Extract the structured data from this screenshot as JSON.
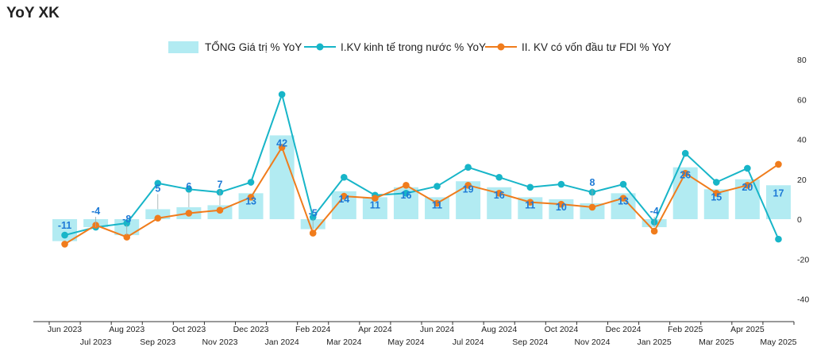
{
  "title": "YoY XK",
  "legend": {
    "total": "TỔNG Giá trị % YoY",
    "domestic": "I.KV kinh tế trong nước % YoY",
    "fdi": "II. KV có vốn đầu tư FDI % YoY"
  },
  "colors": {
    "bar": "#b2ebf2",
    "domestic": "#17b5c8",
    "fdi": "#f07c1c",
    "label": "#1e7ad6",
    "axis": "#333333"
  },
  "chart_data": {
    "type": "bar",
    "categories": [
      "Jun 2023",
      "Jul 2023",
      "Aug 2023",
      "Sep 2023",
      "Oct 2023",
      "Nov 2023",
      "Dec 2023",
      "Jan 2024",
      "Feb 2024",
      "Mar 2024",
      "Apr 2024",
      "May 2024",
      "Jun 2024",
      "Jul 2024",
      "Aug 2024",
      "Sep 2024",
      "Oct 2024",
      "Nov 2024",
      "Dec 2024",
      "Jan 2025",
      "Feb 2025",
      "Mar 2025",
      "Apr 2025",
      "May 2025"
    ],
    "series": [
      {
        "name": "TỔNG Giá trị % YoY",
        "type": "bar",
        "values": [
          -11,
          -4,
          -8,
          5,
          6,
          7,
          13,
          42,
          -5,
          14,
          11,
          16,
          11,
          19,
          16,
          11,
          10,
          8,
          13,
          -4,
          26,
          15,
          20,
          17
        ]
      },
      {
        "name": "I.KV kinh tế trong nước % YoY",
        "type": "line",
        "values": [
          -8,
          -4,
          -2,
          18,
          15,
          13.5,
          18.5,
          62.5,
          1,
          21,
          12,
          13,
          16.5,
          26,
          21,
          16,
          17.5,
          13.5,
          17.5,
          -1.5,
          33,
          18.5,
          25.5,
          -10
        ]
      },
      {
        "name": "II. KV có vốn đầu tư FDI % YoY",
        "type": "line",
        "values": [
          -12.5,
          -3,
          -9,
          0.5,
          3,
          4.5,
          11,
          36,
          -7,
          11.5,
          10.5,
          17,
          8,
          17,
          13,
          8.5,
          7.5,
          6,
          10.5,
          -6,
          23,
          13,
          17,
          27.5
        ]
      }
    ],
    "data_labels": [
      "-11",
      "-4",
      "-8",
      "5",
      "6",
      "7",
      "13",
      "42",
      "-5",
      "14",
      "11",
      "16",
      "11",
      "19",
      "16",
      "11",
      "10",
      "8",
      "13",
      "-4",
      "26",
      "15",
      "20",
      "17"
    ],
    "ylim": [
      -40,
      80
    ],
    "yticks": [
      "80",
      "60",
      "40",
      "20",
      "0",
      "-20",
      "-40"
    ],
    "yaxis_position": "right",
    "grid": false,
    "legend_position": "top"
  }
}
